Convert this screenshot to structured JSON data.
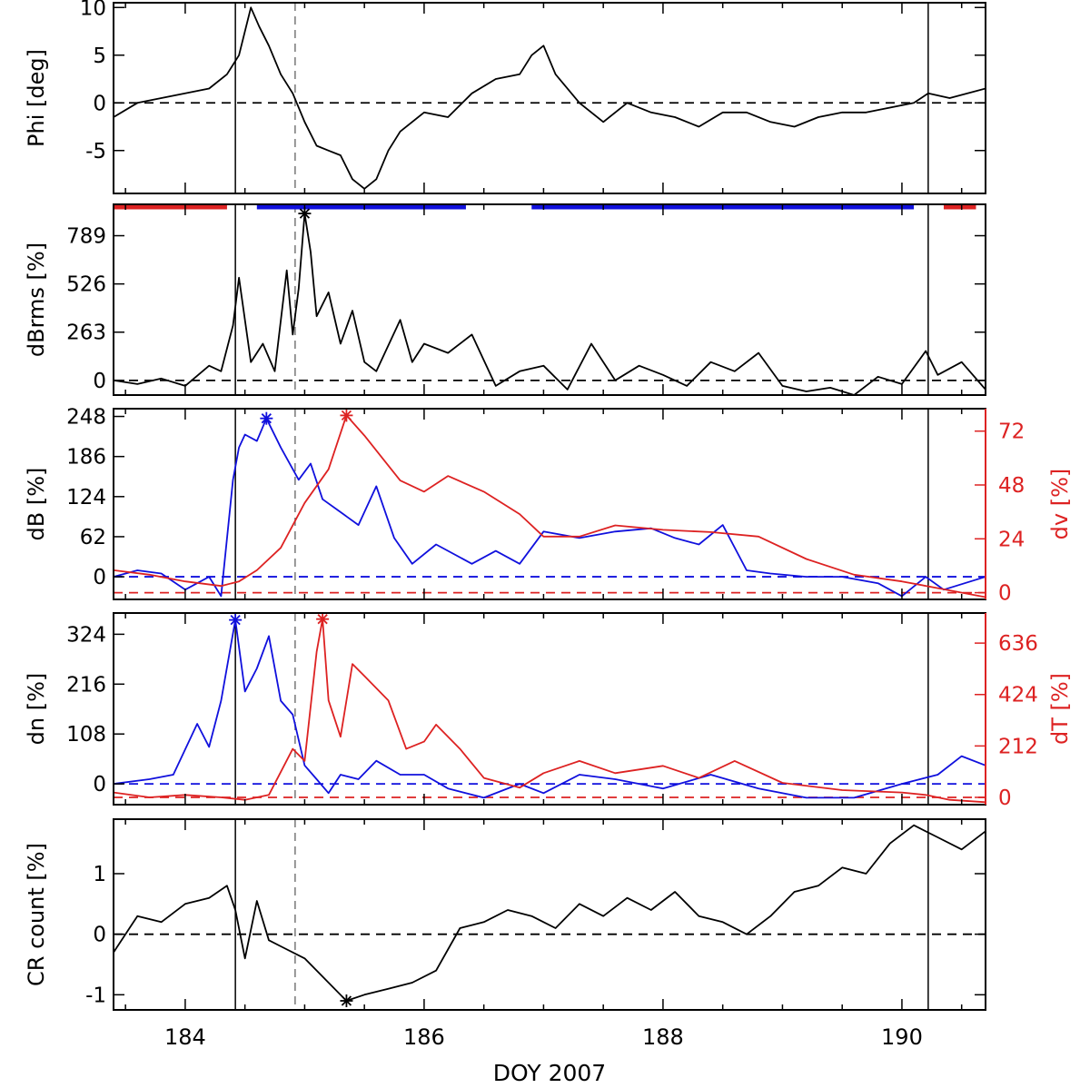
{
  "figure": {
    "xlabel": "DOY 2007",
    "xlim": [
      183.4,
      190.7
    ],
    "xticks": [
      184,
      186,
      188,
      190
    ],
    "xtick_labels": [
      "184",
      "186",
      "188",
      "190"
    ],
    "event_lines": {
      "solid": [
        184.42,
        190.22
      ],
      "dashed": [
        184.92
      ]
    },
    "colors": {
      "black": "#000000",
      "blue": "#1010dd",
      "red": "#dd2222",
      "dashed_gray": "#777777"
    }
  },
  "chart_data": [
    {
      "type": "line",
      "panel": "phi",
      "ylabel": "Phi [deg]",
      "ylim": [
        -9.5,
        10.5
      ],
      "yticks": [
        -5,
        0,
        5,
        10
      ],
      "ytick_labels": [
        "-5",
        "0",
        "5",
        "10"
      ],
      "zero_lines": [
        {
          "y": 0,
          "color": "#000000"
        }
      ],
      "series": [
        {
          "color": "#000000",
          "axis": "left",
          "x": [
            183.4,
            183.6,
            183.8,
            184.0,
            184.2,
            184.35,
            184.45,
            184.55,
            184.62,
            184.7,
            184.8,
            184.9,
            185.0,
            185.1,
            185.2,
            185.3,
            185.4,
            185.5,
            185.6,
            185.7,
            185.8,
            186.0,
            186.2,
            186.4,
            186.6,
            186.8,
            186.9,
            187.0,
            187.1,
            187.3,
            187.5,
            187.7,
            187.9,
            188.1,
            188.3,
            188.5,
            188.7,
            188.9,
            189.1,
            189.3,
            189.5,
            189.7,
            189.9,
            190.1,
            190.22,
            190.4,
            190.7
          ],
          "y": [
            -1.5,
            0,
            0.5,
            1,
            1.5,
            3,
            5,
            10,
            8,
            6,
            3,
            1,
            -2,
            -4.5,
            -5,
            -5.5,
            -8,
            -9,
            -8,
            -5,
            -3,
            -1,
            -1.5,
            1,
            2.5,
            3,
            5,
            6,
            3,
            0,
            -2,
            0,
            -1,
            -1.5,
            -2.5,
            -1,
            -1,
            -2,
            -2.5,
            -1.5,
            -1,
            -1,
            -0.5,
            0,
            1,
            0.5,
            1.5
          ]
        }
      ]
    },
    {
      "type": "line",
      "panel": "dbrms",
      "ylabel": "dBrms [%]",
      "ylim": [
        -80,
        960
      ],
      "yticks": [
        0,
        263,
        526,
        789
      ],
      "ytick_labels": [
        "0",
        "263",
        "526",
        "789"
      ],
      "zero_lines": [
        {
          "y": 0,
          "color": "#000000"
        }
      ],
      "top_bars": [
        {
          "x0": 183.4,
          "x1": 184.35,
          "color": "#dd2222"
        },
        {
          "x0": 184.6,
          "x1": 186.35,
          "color": "#1010dd"
        },
        {
          "x0": 186.9,
          "x1": 190.1,
          "color": "#1010dd"
        },
        {
          "x0": 190.35,
          "x1": 190.62,
          "color": "#dd2222"
        }
      ],
      "peak_markers": [
        {
          "x": 185.0,
          "y": 910,
          "color": "#000000"
        }
      ],
      "series": [
        {
          "color": "#000000",
          "axis": "left",
          "x": [
            183.4,
            183.6,
            183.8,
            184.0,
            184.2,
            184.3,
            184.4,
            184.45,
            184.55,
            184.65,
            184.75,
            184.85,
            184.9,
            184.95,
            185.0,
            185.05,
            185.1,
            185.2,
            185.3,
            185.4,
            185.5,
            185.6,
            185.8,
            185.9,
            186.0,
            186.2,
            186.4,
            186.6,
            186.8,
            187.0,
            187.2,
            187.4,
            187.6,
            187.8,
            188.0,
            188.2,
            188.4,
            188.6,
            188.8,
            189.0,
            189.2,
            189.4,
            189.6,
            189.8,
            190.0,
            190.2,
            190.3,
            190.5,
            190.7
          ],
          "y": [
            0,
            -20,
            10,
            -30,
            80,
            50,
            300,
            560,
            100,
            200,
            50,
            600,
            250,
            500,
            910,
            700,
            350,
            480,
            200,
            380,
            100,
            50,
            330,
            100,
            200,
            150,
            250,
            -30,
            50,
            80,
            -50,
            200,
            0,
            80,
            30,
            -30,
            100,
            50,
            150,
            -30,
            -60,
            -40,
            -80,
            20,
            -20,
            160,
            30,
            100,
            -50
          ]
        }
      ]
    },
    {
      "type": "line",
      "panel": "db_dv",
      "ylabel": "dB [%]",
      "ylim": [
        -35,
        260
      ],
      "yticks": [
        0,
        62,
        124,
        186,
        248
      ],
      "ytick_labels": [
        "0",
        "62",
        "124",
        "186",
        "248"
      ],
      "ylabel_right": "dv [%]",
      "ylim_right": [
        -3,
        82
      ],
      "yticks_right": [
        0,
        24,
        48,
        72
      ],
      "ytick_labels_right": [
        "0",
        "24",
        "48",
        "72"
      ],
      "zero_lines": [
        {
          "y": 0,
          "color": "#1010dd",
          "axis": "left"
        },
        {
          "y": 0,
          "color": "#dd2222",
          "axis": "right"
        }
      ],
      "peak_markers": [
        {
          "x": 184.68,
          "y": 245,
          "color": "#1010dd",
          "axis": "left"
        },
        {
          "x": 185.35,
          "y": 79,
          "color": "#dd2222",
          "axis": "right"
        }
      ],
      "series": [
        {
          "color": "#1010dd",
          "axis": "left",
          "x": [
            183.4,
            183.6,
            183.8,
            184.0,
            184.2,
            184.3,
            184.4,
            184.45,
            184.5,
            184.6,
            184.68,
            184.8,
            184.95,
            185.05,
            185.15,
            185.3,
            185.45,
            185.6,
            185.75,
            185.9,
            186.1,
            186.4,
            186.6,
            186.8,
            187.0,
            187.3,
            187.6,
            187.9,
            188.1,
            188.3,
            188.5,
            188.7,
            188.9,
            189.2,
            189.5,
            189.8,
            190.0,
            190.2,
            190.35,
            190.7
          ],
          "y": [
            0,
            10,
            5,
            -20,
            0,
            -30,
            150,
            200,
            220,
            210,
            245,
            200,
            150,
            175,
            120,
            100,
            80,
            140,
            60,
            20,
            50,
            20,
            40,
            20,
            70,
            60,
            70,
            75,
            60,
            50,
            80,
            10,
            5,
            0,
            0,
            -10,
            -30,
            0,
            -20,
            0
          ]
        }
      ]
    },
    {
      "type": "line",
      "panel": "dv",
      "series": [
        {
          "color": "#dd2222",
          "axis": "right",
          "x": [
            183.4,
            183.7,
            184.0,
            184.3,
            184.45,
            184.6,
            184.8,
            185.0,
            185.2,
            185.35,
            185.5,
            185.8,
            186.0,
            186.2,
            186.5,
            186.8,
            187.0,
            187.3,
            187.6,
            188.0,
            188.4,
            188.8,
            189.2,
            189.6,
            190.0,
            190.3,
            190.7
          ],
          "y": [
            10,
            8,
            5,
            3,
            5,
            10,
            20,
            40,
            55,
            79,
            70,
            50,
            45,
            52,
            45,
            35,
            25,
            25,
            30,
            28,
            27,
            25,
            15,
            8,
            5,
            2,
            -2
          ]
        }
      ]
    },
    {
      "type": "line",
      "panel": "dn_dt",
      "ylabel": "dn [%]",
      "ylim": [
        -45,
        370
      ],
      "yticks": [
        0,
        108,
        216,
        324
      ],
      "ytick_labels": [
        "0",
        "108",
        "216",
        "324"
      ],
      "ylabel_right": "dT [%]",
      "ylim_right": [
        -30,
        760
      ],
      "yticks_right": [
        0,
        212,
        424,
        636
      ],
      "ytick_labels_right": [
        "0",
        "212",
        "424",
        "636"
      ],
      "zero_lines": [
        {
          "y": 0,
          "color": "#1010dd",
          "axis": "left"
        },
        {
          "y": 0,
          "color": "#dd2222",
          "axis": "right"
        }
      ],
      "peak_markers": [
        {
          "x": 184.42,
          "y": 355,
          "color": "#1010dd",
          "axis": "left"
        },
        {
          "x": 185.15,
          "y": 735,
          "color": "#dd2222",
          "axis": "right"
        }
      ],
      "series": [
        {
          "color": "#1010dd",
          "axis": "left",
          "x": [
            183.4,
            183.7,
            183.9,
            184.1,
            184.2,
            184.3,
            184.42,
            184.5,
            184.6,
            184.7,
            184.8,
            184.9,
            185.0,
            185.1,
            185.2,
            185.3,
            185.45,
            185.6,
            185.8,
            186.0,
            186.2,
            186.5,
            186.8,
            187.0,
            187.3,
            187.6,
            188.0,
            188.4,
            188.8,
            189.2,
            189.6,
            190.0,
            190.3,
            190.5,
            190.7
          ],
          "y": [
            0,
            10,
            20,
            130,
            80,
            180,
            355,
            200,
            250,
            320,
            180,
            150,
            40,
            10,
            -20,
            20,
            10,
            50,
            20,
            20,
            -10,
            -30,
            0,
            -20,
            20,
            10,
            -10,
            20,
            -10,
            -30,
            -30,
            0,
            20,
            60,
            40
          ]
        },
        {
          "color": "#dd2222",
          "axis": "right",
          "x": [
            183.4,
            183.7,
            184.0,
            184.3,
            184.5,
            184.7,
            184.9,
            185.0,
            185.1,
            185.15,
            185.2,
            185.3,
            185.4,
            185.5,
            185.6,
            185.7,
            185.85,
            186.0,
            186.1,
            186.3,
            186.5,
            186.8,
            187.0,
            187.3,
            187.6,
            188.0,
            188.3,
            188.6,
            189.0,
            189.5,
            190.0,
            190.2,
            190.4,
            190.7
          ],
          "y": [
            20,
            0,
            10,
            0,
            -10,
            10,
            200,
            150,
            600,
            735,
            400,
            250,
            550,
            500,
            450,
            400,
            200,
            230,
            300,
            200,
            80,
            40,
            100,
            150,
            100,
            130,
            80,
            150,
            60,
            30,
            20,
            10,
            -10,
            -20
          ]
        }
      ]
    },
    {
      "type": "line",
      "panel": "cr",
      "ylabel": "CR count [%]",
      "ylim": [
        -1.25,
        1.9
      ],
      "yticks": [
        -1,
        0,
        1
      ],
      "ytick_labels": [
        "-1",
        "0",
        "1"
      ],
      "zero_lines": [
        {
          "y": 0,
          "color": "#000000"
        }
      ],
      "peak_markers": [
        {
          "x": 185.35,
          "y": -1.1,
          "color": "#000000"
        }
      ],
      "series": [
        {
          "color": "#000000",
          "axis": "left",
          "x": [
            183.4,
            183.6,
            183.8,
            184.0,
            184.2,
            184.35,
            184.42,
            184.5,
            184.6,
            184.7,
            184.8,
            185.0,
            185.2,
            185.35,
            185.5,
            185.7,
            185.9,
            186.1,
            186.3,
            186.5,
            186.7,
            186.9,
            187.1,
            187.3,
            187.5,
            187.7,
            187.9,
            188.1,
            188.3,
            188.5,
            188.7,
            188.9,
            189.1,
            189.3,
            189.5,
            189.7,
            189.9,
            190.1,
            190.3,
            190.5,
            190.7
          ],
          "y": [
            -0.3,
            0.3,
            0.2,
            0.5,
            0.6,
            0.8,
            0.4,
            -0.4,
            0.55,
            -0.1,
            -0.2,
            -0.4,
            -0.8,
            -1.1,
            -1.0,
            -0.9,
            -0.8,
            -0.6,
            0.1,
            0.2,
            0.4,
            0.3,
            0.1,
            0.5,
            0.3,
            0.6,
            0.4,
            0.7,
            0.3,
            0.2,
            0.0,
            0.3,
            0.7,
            0.8,
            1.1,
            1.0,
            1.5,
            1.8,
            1.6,
            1.4,
            1.7
          ]
        }
      ]
    }
  ]
}
